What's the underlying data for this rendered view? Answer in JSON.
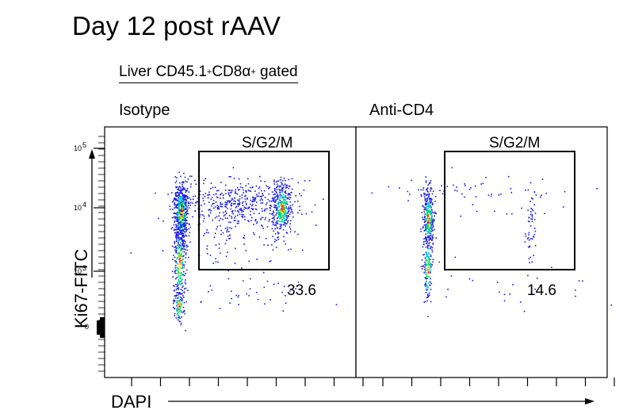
{
  "title": "Day 12 post rAAV",
  "gate": {
    "text": "Liver CD45.1",
    "sup1": "+",
    "mid": "CD8α",
    "sup2": "+",
    "tail": " gated"
  },
  "axes": {
    "ylabel": "Ki67-FITC",
    "xlabel": "DAPI",
    "yticks": [
      {
        "label": "10",
        "exp": "5",
        "value": 5
      },
      {
        "label": "10",
        "exp": "4",
        "value": 4
      },
      {
        "label": "10",
        "exp": "3",
        "value": 3
      },
      {
        "label": "0",
        "exp": "",
        "value": 0
      }
    ]
  },
  "panels": [
    {
      "label": "Isotype",
      "gate_name": "S/G2/M",
      "percent": "33.6"
    },
    {
      "label": "Anti-CD4",
      "gate_name": "S/G2/M",
      "percent": "14.6"
    }
  ],
  "colors": {
    "low": "#1a1ae6",
    "mid": "#00c8c8",
    "high": "#00dc46",
    "peak": "#ff2000",
    "warm": "#ffd000"
  }
}
